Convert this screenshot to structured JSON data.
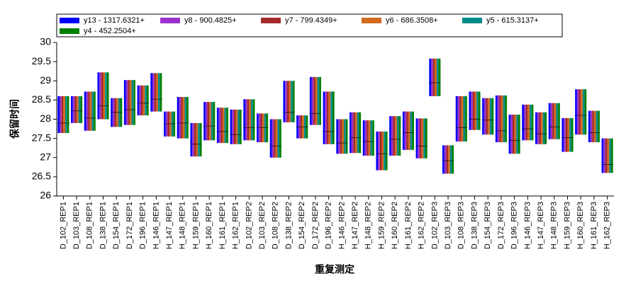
{
  "chart_data": {
    "type": "range",
    "y_label": "保留时间",
    "x_label": "重复测定",
    "categories": [
      "D_102_REP1",
      "D_103_REP1",
      "D_108_REP1",
      "D_138_REP1",
      "D_154_REP1",
      "D_172_REP1",
      "D_196_REP1",
      "H_146_REP1",
      "H_147_REP1",
      "H_148_REP1",
      "H_159_REP1",
      "H_160_REP1",
      "H_161_REP1",
      "H_162_REP1",
      "D_102_REP2",
      "D_103_REP2",
      "D_108_REP2",
      "D_138_REP2",
      "D_154_REP2",
      "D_172_REP2",
      "D_196_REP2",
      "H_146_REP2",
      "H_147_REP2",
      "H_148_REP2",
      "H_159_REP2",
      "H_160_REP2",
      "H_161_REP2",
      "H_162_REP2",
      "D_102_REP3",
      "D_103_REP3",
      "D_108_REP3",
      "D_138_REP3",
      "D_154_REP3",
      "D_172_REP3",
      "D_196_REP3",
      "H_146_REP3",
      "H_147_REP3",
      "H_148_REP3",
      "H_159_REP3",
      "H_160_REP3",
      "H_161_REP3",
      "H_162_REP3"
    ],
    "high": [
      28.6,
      28.6,
      28.72,
      29.22,
      28.55,
      29.02,
      28.88,
      29.2,
      28.2,
      28.58,
      27.9,
      28.45,
      28.3,
      28.25,
      28.52,
      28.15,
      28.0,
      29.0,
      28.1,
      29.1,
      28.72,
      28.0,
      28.18,
      27.97,
      27.68,
      28.08,
      28.2,
      28.02,
      29.58,
      27.32,
      28.6,
      28.72,
      28.55,
      28.62,
      28.12,
      28.38,
      28.18,
      28.42,
      28.03,
      28.78,
      28.22,
      27.5
    ],
    "low": [
      27.64,
      27.9,
      27.7,
      28.0,
      27.8,
      27.85,
      28.1,
      28.2,
      27.55,
      27.5,
      27.03,
      27.45,
      27.38,
      27.35,
      27.45,
      27.4,
      27.0,
      27.92,
      27.5,
      27.85,
      27.35,
      27.1,
      27.12,
      27.05,
      26.67,
      27.05,
      27.2,
      26.98,
      28.6,
      26.58,
      27.42,
      27.72,
      27.6,
      27.4,
      27.1,
      27.45,
      27.35,
      27.48,
      27.15,
      27.6,
      27.4,
      26.6
    ],
    "mid": [
      27.9,
      28.22,
      28.03,
      28.35,
      28.18,
      28.25,
      28.42,
      28.52,
      27.88,
      27.9,
      27.35,
      27.82,
      27.68,
      27.6,
      27.78,
      27.78,
      27.3,
      28.18,
      27.8,
      28.15,
      27.68,
      27.38,
      27.52,
      27.42,
      27.1,
      27.48,
      27.65,
      27.3,
      28.95,
      26.92,
      27.78,
      28.0,
      27.98,
      27.7,
      27.45,
      27.75,
      27.62,
      27.8,
      27.52,
      28.1,
      27.65,
      26.82
    ],
    "series": [
      {
        "name": "y13 - 1317.6321+",
        "color": "#0000ff"
      },
      {
        "name": "y8 - 900.4825+",
        "color": "#9932cc"
      },
      {
        "name": "y7 - 799.4349+",
        "color": "#a52a2a"
      },
      {
        "name": "y6 - 686.3508+",
        "color": "#d2691e"
      },
      {
        "name": "y5 - 615.3137+",
        "color": "#008b8b"
      },
      {
        "name": "y4 - 452.2504+",
        "color": "#008000"
      }
    ],
    "ylim": [
      26,
      30
    ],
    "yticks": [
      26,
      26.5,
      27,
      27.5,
      28,
      28.5,
      29,
      29.5,
      30
    ],
    "legend": "top"
  }
}
